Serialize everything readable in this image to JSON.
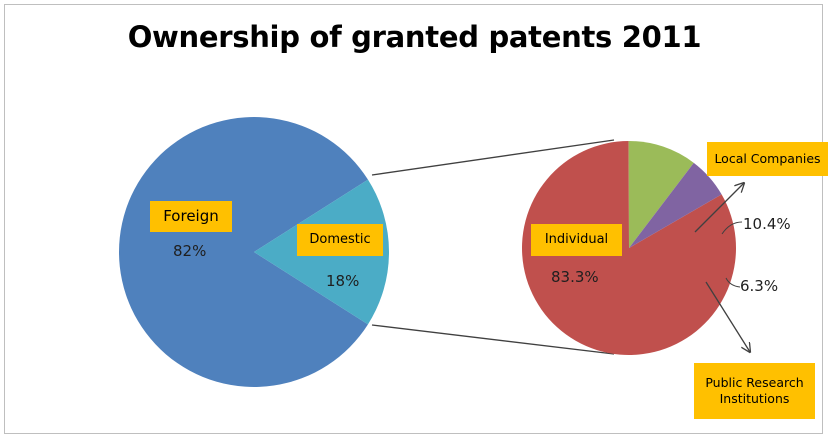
{
  "chart_data": [
    {
      "type": "pie",
      "title": "Ownership of granted patents 2011",
      "slices": [
        {
          "label": "Foreign",
          "value": 82,
          "value_label": "82%",
          "color": "#4f81bd"
        },
        {
          "label": "Domestic",
          "value": 18,
          "value_label": "18%",
          "color": "#4bacc6"
        }
      ]
    },
    {
      "type": "pie",
      "breakdown_of": "Domestic",
      "slices": [
        {
          "label": "Individual",
          "value": 83.3,
          "value_label": "83.3%",
          "color": "#c0504d"
        },
        {
          "label": "Local Companies",
          "value": 10.4,
          "value_label": "10.4%",
          "color": "#9bbb59"
        },
        {
          "label": "Public Research Institutions",
          "value": 6.3,
          "value_label": "6.3%",
          "color": "#8064a2"
        }
      ]
    }
  ],
  "colors": {
    "label_box": "#ffc000",
    "connector": "#404040"
  }
}
